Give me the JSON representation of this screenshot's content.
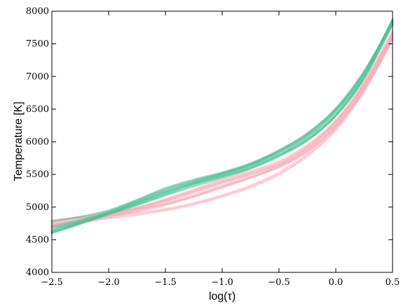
{
  "chart_data": {
    "type": "line",
    "title": "",
    "xlabel": "log(τ)",
    "ylabel": "Temperature [K]",
    "xlim": [
      -2.5,
      0.5
    ],
    "ylim": [
      4000,
      8000
    ],
    "x_ticks": [
      -2.5,
      -2.0,
      -1.5,
      -1.0,
      -0.5,
      0.0,
      0.5
    ],
    "x_tick_labels": [
      "−2.5",
      "−2.0",
      "−1.5",
      "−1.0",
      "−0.5",
      "0.0",
      "0.5"
    ],
    "y_ticks": [
      4000,
      4500,
      5000,
      5500,
      6000,
      6500,
      7000,
      7500,
      8000
    ],
    "y_tick_labels": [
      "4000",
      "4500",
      "5000",
      "5500",
      "6000",
      "6500",
      "7000",
      "7500",
      "8000"
    ],
    "grid": false,
    "legend": "none",
    "x": [
      -2.5,
      -2.25,
      -2.0,
      -1.75,
      -1.5,
      -1.25,
      -1.0,
      -0.75,
      -0.5,
      -0.25,
      0.0,
      0.25,
      0.5
    ],
    "series": [
      {
        "group": "green",
        "values": [
          4600,
          4745,
          4890,
          5040,
          5195,
          5350,
          5480,
          5620,
          5800,
          6030,
          6400,
          6980,
          7860
        ]
      },
      {
        "group": "green",
        "values": [
          4610,
          4750,
          4900,
          5060,
          5220,
          5370,
          5500,
          5640,
          5830,
          6080,
          6460,
          7030,
          7880
        ]
      },
      {
        "group": "green",
        "values": [
          4620,
          4760,
          4910,
          5080,
          5250,
          5390,
          5510,
          5650,
          5850,
          6100,
          6480,
          7050,
          7840
        ]
      },
      {
        "group": "green",
        "values": [
          4700,
          4800,
          4930,
          5100,
          5270,
          5400,
          5520,
          5660,
          5860,
          6120,
          6500,
          7070,
          7850
        ]
      },
      {
        "group": "green",
        "values": [
          4780,
          4850,
          4950,
          5110,
          5290,
          5420,
          5530,
          5670,
          5870,
          6130,
          6510,
          7080,
          7830
        ]
      },
      {
        "group": "green",
        "values": [
          4640,
          4770,
          4920,
          5070,
          5230,
          5360,
          5470,
          5600,
          5790,
          6050,
          6420,
          7000,
          7810
        ]
      },
      {
        "group": "green",
        "values": [
          4660,
          4780,
          4900,
          5030,
          5180,
          5320,
          5450,
          5590,
          5780,
          6020,
          6400,
          6970,
          7790
        ]
      },
      {
        "group": "pink",
        "values": [
          4680,
          4770,
          4860,
          4960,
          5080,
          5220,
          5370,
          5500,
          5650,
          5900,
          6290,
          6870,
          7640
        ]
      },
      {
        "group": "pink",
        "values": [
          4720,
          4800,
          4870,
          4950,
          5050,
          5180,
          5330,
          5470,
          5620,
          5860,
          6240,
          6820,
          7600
        ]
      },
      {
        "group": "pink",
        "values": [
          4750,
          4830,
          4900,
          4990,
          5110,
          5250,
          5400,
          5530,
          5680,
          5930,
          6310,
          6890,
          7670
        ]
      },
      {
        "group": "pink",
        "values": [
          4690,
          4760,
          4840,
          4930,
          5030,
          5160,
          5310,
          5450,
          5610,
          5850,
          6230,
          6810,
          7580
        ]
      },
      {
        "group": "pink",
        "values": [
          4780,
          4850,
          4910,
          4970,
          5050,
          5160,
          5300,
          5450,
          5630,
          5880,
          6260,
          6840,
          7620
        ]
      },
      {
        "group": "pink",
        "values": [
          4700,
          4790,
          4880,
          4980,
          5100,
          5240,
          5380,
          5510,
          5660,
          5910,
          6300,
          6880,
          7650
        ]
      },
      {
        "group": "pink",
        "values": [
          4740,
          4780,
          4830,
          4880,
          4950,
          5040,
          5160,
          5300,
          5500,
          5780,
          6180,
          6770,
          7560
        ]
      },
      {
        "group": "pink",
        "values": [
          4800,
          4840,
          4870,
          4910,
          4970,
          5060,
          5180,
          5330,
          5530,
          5810,
          6210,
          6800,
          7590
        ]
      },
      {
        "group": "pink",
        "values": [
          4730,
          4810,
          4890,
          4990,
          5120,
          5270,
          5420,
          5550,
          5700,
          5950,
          6330,
          6910,
          7690
        ]
      }
    ],
    "colors": {
      "green": "#4fbf96",
      "pink": "#f7a9b8"
    }
  }
}
